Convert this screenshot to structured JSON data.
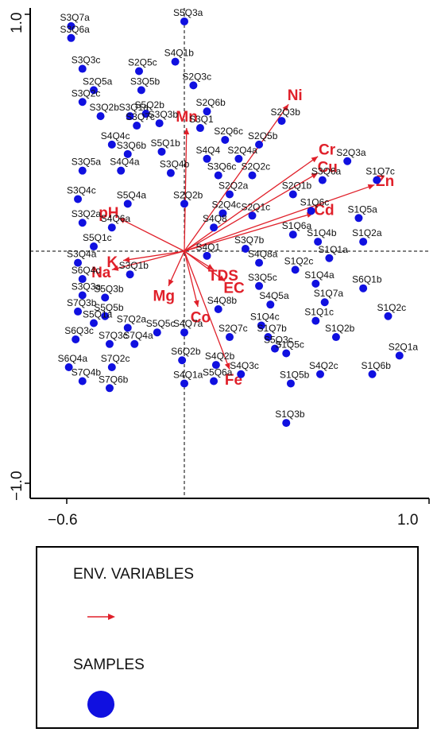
{
  "chart_data": {
    "type": "scatter",
    "subtype": "ordination biplot",
    "xlim": [
      -0.6,
      1.0
    ],
    "ylim": [
      -1.0,
      1.0
    ],
    "x_ticks": [
      "−0.6",
      "1.0"
    ],
    "y_ticks": [
      "1.0",
      "−1.0"
    ],
    "zero_lines": "dashed",
    "colors": {
      "samples": "#1010e0",
      "vectors": "#e0202a"
    },
    "samples": [
      {
        "id": "S3Q7a",
        "x": -0.5,
        "y": 0.95
      },
      {
        "id": "S5Q3a",
        "x": 0.0,
        "y": 0.97
      },
      {
        "id": "S3Q6a",
        "x": -0.5,
        "y": 0.9
      },
      {
        "id": "S4Q1b",
        "x": -0.04,
        "y": 0.8
      },
      {
        "id": "S2Q5c",
        "x": -0.2,
        "y": 0.76
      },
      {
        "id": "S3Q3c",
        "x": -0.45,
        "y": 0.77
      },
      {
        "id": "S2Q3c",
        "x": 0.04,
        "y": 0.7
      },
      {
        "id": "S3Q5b",
        "x": -0.19,
        "y": 0.68
      },
      {
        "id": "S2Q5a",
        "x": -0.4,
        "y": 0.68
      },
      {
        "id": "S2Q6b",
        "x": 0.1,
        "y": 0.59
      },
      {
        "id": "S3Q2c",
        "x": -0.45,
        "y": 0.63
      },
      {
        "id": "S3Q1a",
        "x": -0.24,
        "y": 0.57
      },
      {
        "id": "S5Q2b",
        "x": -0.17,
        "y": 0.58
      },
      {
        "id": "S3Q2b",
        "x": -0.37,
        "y": 0.57
      },
      {
        "id": "S3Q7c",
        "x": -0.21,
        "y": 0.53
      },
      {
        "id": "S3Q3b",
        "x": -0.11,
        "y": 0.54
      },
      {
        "id": "S3Q1",
        "x": 0.07,
        "y": 0.52
      },
      {
        "id": "S2Q6c",
        "x": 0.18,
        "y": 0.47
      },
      {
        "id": "S2Q3b",
        "x": 0.43,
        "y": 0.55
      },
      {
        "id": "S2Q5b",
        "x": 0.33,
        "y": 0.45
      },
      {
        "id": "S4Q4c",
        "x": -0.32,
        "y": 0.45
      },
      {
        "id": "S3Q6b",
        "x": -0.25,
        "y": 0.41
      },
      {
        "id": "S5Q1b",
        "x": -0.1,
        "y": 0.42
      },
      {
        "id": "S3Q4b",
        "x": -0.06,
        "y": 0.33
      },
      {
        "id": "S4Q4",
        "x": 0.1,
        "y": 0.39
      },
      {
        "id": "S2Q4a",
        "x": 0.24,
        "y": 0.39
      },
      {
        "id": "S4Q4a",
        "x": -0.28,
        "y": 0.34
      },
      {
        "id": "S3Q5a",
        "x": -0.45,
        "y": 0.34
      },
      {
        "id": "S3Q6c",
        "x": 0.15,
        "y": 0.32
      },
      {
        "id": "S2Q2c",
        "x": 0.3,
        "y": 0.32
      },
      {
        "id": "S2Q3a",
        "x": 0.72,
        "y": 0.38
      },
      {
        "id": "S3Q6a",
        "x": 0.61,
        "y": 0.3
      },
      {
        "id": "S1Q7c",
        "x": 0.85,
        "y": 0.3
      },
      {
        "id": "S5Q4a",
        "x": -0.25,
        "y": 0.2
      },
      {
        "id": "S2Q2a",
        "x": 0.2,
        "y": 0.24
      },
      {
        "id": "S2Q1b",
        "x": 0.48,
        "y": 0.24
      },
      {
        "id": "S3Q4c",
        "x": -0.47,
        "y": 0.22
      },
      {
        "id": "S2Q2b",
        "x": 0.0,
        "y": 0.2
      },
      {
        "id": "S2Q4c",
        "x": 0.17,
        "y": 0.16
      },
      {
        "id": "S2Q1c",
        "x": 0.3,
        "y": 0.15
      },
      {
        "id": "S1Q6c",
        "x": 0.56,
        "y": 0.17
      },
      {
        "id": "S1Q5a",
        "x": 0.77,
        "y": 0.14
      },
      {
        "id": "S3Q2a",
        "x": -0.45,
        "y": 0.12
      },
      {
        "id": "S4Q6a",
        "x": -0.32,
        "y": 0.1
      },
      {
        "id": "S4Q8",
        "x": 0.13,
        "y": 0.1
      },
      {
        "id": "S1Q6a",
        "x": 0.48,
        "y": 0.07
      },
      {
        "id": "S1Q4b",
        "x": 0.59,
        "y": 0.04
      },
      {
        "id": "S1Q2a",
        "x": 0.79,
        "y": 0.04
      },
      {
        "id": "S5Q1c",
        "x": -0.4,
        "y": 0.02
      },
      {
        "id": "S3Q7b",
        "x": 0.27,
        "y": 0.01
      },
      {
        "id": "S4Q1",
        "x": 0.1,
        "y": -0.02
      },
      {
        "id": "S1Q1a",
        "x": 0.64,
        "y": -0.03
      },
      {
        "id": "S3Q4a",
        "x": -0.47,
        "y": -0.05
      },
      {
        "id": "S4Q8a",
        "x": 0.33,
        "y": -0.05
      },
      {
        "id": "S1Q2c",
        "x": 0.49,
        "y": -0.08
      },
      {
        "id": "S6Q4c",
        "x": -0.45,
        "y": -0.12
      },
      {
        "id": "S3Q1b",
        "x": -0.24,
        "y": -0.1
      },
      {
        "id": "S3Q5c",
        "x": 0.33,
        "y": -0.15
      },
      {
        "id": "S1Q4a",
        "x": 0.58,
        "y": -0.14
      },
      {
        "id": "S6Q1b",
        "x": 0.79,
        "y": -0.16
      },
      {
        "id": "S3Q3a",
        "x": -0.45,
        "y": -0.19
      },
      {
        "id": "S5Q3b",
        "x": -0.35,
        "y": -0.2
      },
      {
        "id": "S4Q5a",
        "x": 0.38,
        "y": -0.23
      },
      {
        "id": "S1Q7a",
        "x": 0.62,
        "y": -0.22
      },
      {
        "id": "S7Q3b",
        "x": -0.47,
        "y": -0.26
      },
      {
        "id": "S5Q5b",
        "x": -0.35,
        "y": -0.28
      },
      {
        "id": "S4Q8b",
        "x": 0.15,
        "y": -0.25
      },
      {
        "id": "S1Q4c",
        "x": 0.34,
        "y": -0.32
      },
      {
        "id": "S1Q1c",
        "x": 0.58,
        "y": -0.3
      },
      {
        "id": "S1Q2c",
        "x": 0.9,
        "y": -0.28
      },
      {
        "id": "S5Q1a",
        "x": -0.4,
        "y": -0.31
      },
      {
        "id": "S7Q2a",
        "x": -0.25,
        "y": -0.33
      },
      {
        "id": "S5Q5c",
        "x": -0.12,
        "y": -0.35
      },
      {
        "id": "S4Q7a",
        "x": 0.0,
        "y": -0.35
      },
      {
        "id": "S2Q7c",
        "x": 0.2,
        "y": -0.37
      },
      {
        "id": "S1Q7b",
        "x": 0.37,
        "y": -0.37
      },
      {
        "id": "S1Q2b",
        "x": 0.67,
        "y": -0.37
      },
      {
        "id": "S6Q3c",
        "x": -0.48,
        "y": -0.38
      },
      {
        "id": "S7Q3c",
        "x": -0.33,
        "y": -0.4
      },
      {
        "id": "S7Q4a",
        "x": -0.22,
        "y": -0.4
      },
      {
        "id": "S5Q3c",
        "x": 0.4,
        "y": -0.42
      },
      {
        "id": "S1Q5c",
        "x": 0.45,
        "y": -0.44
      },
      {
        "id": "S2Q1a",
        "x": 0.95,
        "y": -0.45
      },
      {
        "id": "S6Q2b",
        "x": -0.01,
        "y": -0.47
      },
      {
        "id": "S4Q2b",
        "x": 0.14,
        "y": -0.49
      },
      {
        "id": "S6Q4a",
        "x": -0.51,
        "y": -0.5
      },
      {
        "id": "S7Q2c",
        "x": -0.32,
        "y": -0.5
      },
      {
        "id": "S4Q3c",
        "x": 0.25,
        "y": -0.53
      },
      {
        "id": "S4Q2c",
        "x": 0.6,
        "y": -0.53
      },
      {
        "id": "S1Q6b",
        "x": 0.83,
        "y": -0.53
      },
      {
        "id": "S1Q5b",
        "x": 0.47,
        "y": -0.57
      },
      {
        "id": "S7Q4b",
        "x": -0.45,
        "y": -0.56
      },
      {
        "id": "S7Q6b",
        "x": -0.33,
        "y": -0.59
      },
      {
        "id": "S4Q1a",
        "x": 0.0,
        "y": -0.57
      },
      {
        "id": "S5Q6a",
        "x": 0.13,
        "y": -0.56
      },
      {
        "id": "S1Q3b",
        "x": 0.45,
        "y": -0.74
      }
    ],
    "vectors": [
      {
        "name": "Ni",
        "x": 0.46,
        "y": 0.62
      },
      {
        "name": "Cr",
        "x": 0.59,
        "y": 0.4
      },
      {
        "name": "Cu",
        "x": 0.59,
        "y": 0.33
      },
      {
        "name": "Zn",
        "x": 0.84,
        "y": 0.28
      },
      {
        "name": "Cd",
        "x": 0.57,
        "y": 0.16
      },
      {
        "name": "Mn",
        "x": 0.01,
        "y": 0.52
      },
      {
        "name": "pH",
        "x": -0.29,
        "y": 0.14
      },
      {
        "name": "K",
        "x": -0.27,
        "y": -0.04
      },
      {
        "name": "Na",
        "x": -0.32,
        "y": -0.08
      },
      {
        "name": "Mg",
        "x": -0.07,
        "y": -0.15
      },
      {
        "name": "TDS",
        "x": 0.13,
        "y": -0.08
      },
      {
        "name": "EC",
        "x": 0.18,
        "y": -0.13
      },
      {
        "name": "Co",
        "x": 0.06,
        "y": -0.24
      },
      {
        "name": "Fe",
        "x": 0.2,
        "y": -0.51
      }
    ]
  },
  "legend": {
    "env_label": "ENV. VARIABLES",
    "samples_label": "SAMPLES"
  }
}
